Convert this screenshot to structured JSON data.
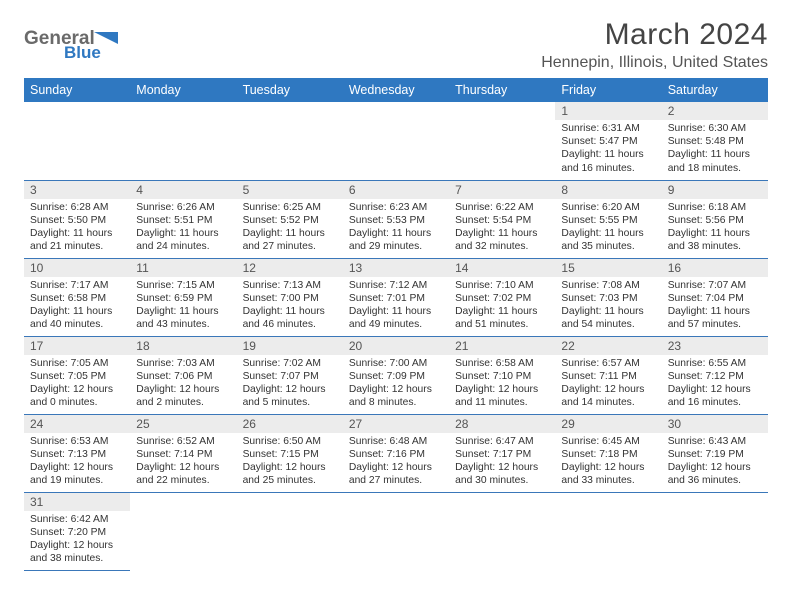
{
  "brand": {
    "name1": "General",
    "name2": "Blue",
    "name1_color": "#6a6a6a",
    "name2_color": "#2f78c1",
    "tri_color": "#2f78c1"
  },
  "title": "March 2024",
  "location": "Hennepin, Illinois, United States",
  "headers": [
    "Sunday",
    "Monday",
    "Tuesday",
    "Wednesday",
    "Thursday",
    "Friday",
    "Saturday"
  ],
  "header_bg": "#2f78c1",
  "header_fg": "#ffffff",
  "daynum_bg": "#ececec",
  "rule_color": "#3a77b9",
  "text_color": "#333333",
  "weeks": [
    [
      null,
      null,
      null,
      null,
      null,
      {
        "n": "1",
        "sr": "6:31 AM",
        "ss": "5:47 PM",
        "dl": "11 hours and 16 minutes."
      },
      {
        "n": "2",
        "sr": "6:30 AM",
        "ss": "5:48 PM",
        "dl": "11 hours and 18 minutes."
      }
    ],
    [
      {
        "n": "3",
        "sr": "6:28 AM",
        "ss": "5:50 PM",
        "dl": "11 hours and 21 minutes."
      },
      {
        "n": "4",
        "sr": "6:26 AM",
        "ss": "5:51 PM",
        "dl": "11 hours and 24 minutes."
      },
      {
        "n": "5",
        "sr": "6:25 AM",
        "ss": "5:52 PM",
        "dl": "11 hours and 27 minutes."
      },
      {
        "n": "6",
        "sr": "6:23 AM",
        "ss": "5:53 PM",
        "dl": "11 hours and 29 minutes."
      },
      {
        "n": "7",
        "sr": "6:22 AM",
        "ss": "5:54 PM",
        "dl": "11 hours and 32 minutes."
      },
      {
        "n": "8",
        "sr": "6:20 AM",
        "ss": "5:55 PM",
        "dl": "11 hours and 35 minutes."
      },
      {
        "n": "9",
        "sr": "6:18 AM",
        "ss": "5:56 PM",
        "dl": "11 hours and 38 minutes."
      }
    ],
    [
      {
        "n": "10",
        "sr": "7:17 AM",
        "ss": "6:58 PM",
        "dl": "11 hours and 40 minutes."
      },
      {
        "n": "11",
        "sr": "7:15 AM",
        "ss": "6:59 PM",
        "dl": "11 hours and 43 minutes."
      },
      {
        "n": "12",
        "sr": "7:13 AM",
        "ss": "7:00 PM",
        "dl": "11 hours and 46 minutes."
      },
      {
        "n": "13",
        "sr": "7:12 AM",
        "ss": "7:01 PM",
        "dl": "11 hours and 49 minutes."
      },
      {
        "n": "14",
        "sr": "7:10 AM",
        "ss": "7:02 PM",
        "dl": "11 hours and 51 minutes."
      },
      {
        "n": "15",
        "sr": "7:08 AM",
        "ss": "7:03 PM",
        "dl": "11 hours and 54 minutes."
      },
      {
        "n": "16",
        "sr": "7:07 AM",
        "ss": "7:04 PM",
        "dl": "11 hours and 57 minutes."
      }
    ],
    [
      {
        "n": "17",
        "sr": "7:05 AM",
        "ss": "7:05 PM",
        "dl": "12 hours and 0 minutes."
      },
      {
        "n": "18",
        "sr": "7:03 AM",
        "ss": "7:06 PM",
        "dl": "12 hours and 2 minutes."
      },
      {
        "n": "19",
        "sr": "7:02 AM",
        "ss": "7:07 PM",
        "dl": "12 hours and 5 minutes."
      },
      {
        "n": "20",
        "sr": "7:00 AM",
        "ss": "7:09 PM",
        "dl": "12 hours and 8 minutes."
      },
      {
        "n": "21",
        "sr": "6:58 AM",
        "ss": "7:10 PM",
        "dl": "12 hours and 11 minutes."
      },
      {
        "n": "22",
        "sr": "6:57 AM",
        "ss": "7:11 PM",
        "dl": "12 hours and 14 minutes."
      },
      {
        "n": "23",
        "sr": "6:55 AM",
        "ss": "7:12 PM",
        "dl": "12 hours and 16 minutes."
      }
    ],
    [
      {
        "n": "24",
        "sr": "6:53 AM",
        "ss": "7:13 PM",
        "dl": "12 hours and 19 minutes."
      },
      {
        "n": "25",
        "sr": "6:52 AM",
        "ss": "7:14 PM",
        "dl": "12 hours and 22 minutes."
      },
      {
        "n": "26",
        "sr": "6:50 AM",
        "ss": "7:15 PM",
        "dl": "12 hours and 25 minutes."
      },
      {
        "n": "27",
        "sr": "6:48 AM",
        "ss": "7:16 PM",
        "dl": "12 hours and 27 minutes."
      },
      {
        "n": "28",
        "sr": "6:47 AM",
        "ss": "7:17 PM",
        "dl": "12 hours and 30 minutes."
      },
      {
        "n": "29",
        "sr": "6:45 AM",
        "ss": "7:18 PM",
        "dl": "12 hours and 33 minutes."
      },
      {
        "n": "30",
        "sr": "6:43 AM",
        "ss": "7:19 PM",
        "dl": "12 hours and 36 minutes."
      }
    ],
    [
      {
        "n": "31",
        "sr": "6:42 AM",
        "ss": "7:20 PM",
        "dl": "12 hours and 38 minutes."
      },
      null,
      null,
      null,
      null,
      null,
      null
    ]
  ],
  "labels": {
    "sunrise": "Sunrise: ",
    "sunset": "Sunset: ",
    "daylight": "Daylight: "
  }
}
